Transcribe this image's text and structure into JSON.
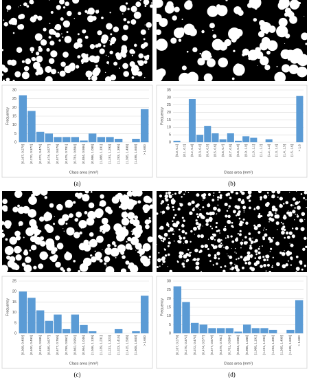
{
  "chart_data": [
    {
      "type": "bar",
      "label": "(a)",
      "y_label": "Frequency",
      "x_label": "Class area (mm²)",
      "color": "#5b9bd5",
      "grid": true,
      "categories": [
        "[0.167, 0.270]",
        "(0.270, 0.372]",
        "(0.372, 0.474]",
        "(0.474, 0.577]",
        "(0.577, 0.679]",
        "(0.679, 0.781]",
        "(0.781, 0.884]",
        "(0.884, 0.986]",
        "(0.986, 1.088]",
        "(1.088, 1.191]",
        "(1.191, 1.293]",
        "(1.293, 1.395]",
        "(1.395, 1.498]",
        "(1.498, 1.600]",
        "> 1.600"
      ],
      "values": [
        27,
        18,
        6,
        5,
        3,
        3,
        3,
        1,
        5,
        3,
        3,
        2,
        0,
        2,
        19
      ],
      "ylim": [
        0,
        30
      ],
      "yticks": [
        0,
        5,
        10,
        15,
        20,
        25,
        30
      ]
    },
    {
      "type": "bar",
      "label": "(b)",
      "y_label": "Frequency",
      "x_label": "Class area (mm²)",
      "color": "#5b9bd5",
      "grid": true,
      "categories": [
        "[0.0, 0.1]",
        "(0.1, 0.2]",
        "(0.2, 0.3]",
        "(0.3, 0.4]",
        "(0.4, 0.5]",
        "(0.5, 0.6]",
        "(0.6, 0.7]",
        "(0.7, 0.8]",
        "(0.8, 0.9]",
        "(0.9, 1.0]",
        "(1.0, 1.1]",
        "(1.1, 1.2]",
        "(1.2, 1.3]",
        "(1.3, 1.4]",
        "(1.4, 1.5]",
        "(1.5, 1.6]",
        "> 1.6"
      ],
      "values": [
        1,
        0,
        29,
        5,
        11,
        6,
        2,
        6,
        1,
        4,
        3,
        0,
        2,
        0,
        0,
        0,
        31
      ],
      "ylim": [
        0,
        35
      ],
      "yticks": [
        0,
        5,
        10,
        15,
        20,
        25,
        30,
        35
      ]
    },
    {
      "type": "bar",
      "label": "(c)",
      "y_label": "Frequency",
      "x_label": "Class area (mm²)",
      "color": "#5b9bd5",
      "grid": true,
      "categories": [
        "[0.308, 0.400]",
        "(0.400, 0.493]",
        "(0.493, 0.585]",
        "(0.585, 0.677]",
        "(0.677, 0.769]",
        "(0.769, 0.862]",
        "(0.862, 0.954]",
        "(0.954, 1.046]",
        "(1.046, 1.139]",
        "(1.139, 1.231]",
        "(1.231, 1.323]",
        "(1.323, 1.415]",
        "(1.415, 1.508]",
        "(1.508, 1.600]",
        "> 1.600"
      ],
      "values": [
        20,
        17,
        11,
        6,
        9,
        2,
        9,
        4,
        1,
        0,
        0,
        2,
        0,
        1,
        18
      ],
      "ylim": [
        0,
        25
      ],
      "yticks": [
        0,
        5,
        10,
        15,
        20,
        25
      ]
    },
    {
      "type": "bar",
      "label": "(d)",
      "y_label": "Frequency",
      "x_label": "Class area (mm²)",
      "color": "#5b9bd5",
      "grid": true,
      "categories": [
        "[0.167, 0.270]",
        "(0.270, 0.372]",
        "(0.372, 0.474]",
        "(0.474, 0.577]",
        "(0.577, 0.679]",
        "(0.679, 0.781]",
        "(0.781, 0.884]",
        "(0.884, 0.986]",
        "(0.986, 1.088]",
        "(1.088, 1.191]",
        "(1.191, 1.293]",
        "(1.293, 1.395]",
        "(1.395, 1.498]",
        "(1.498, 1.600]",
        "> 1.600"
      ],
      "values": [
        27,
        18,
        6,
        5,
        3,
        3,
        3,
        1,
        5,
        3,
        3,
        2,
        0,
        2,
        19
      ],
      "ylim": [
        0,
        30
      ],
      "yticks": [
        0,
        5,
        10,
        15,
        20,
        25,
        30
      ]
    }
  ]
}
